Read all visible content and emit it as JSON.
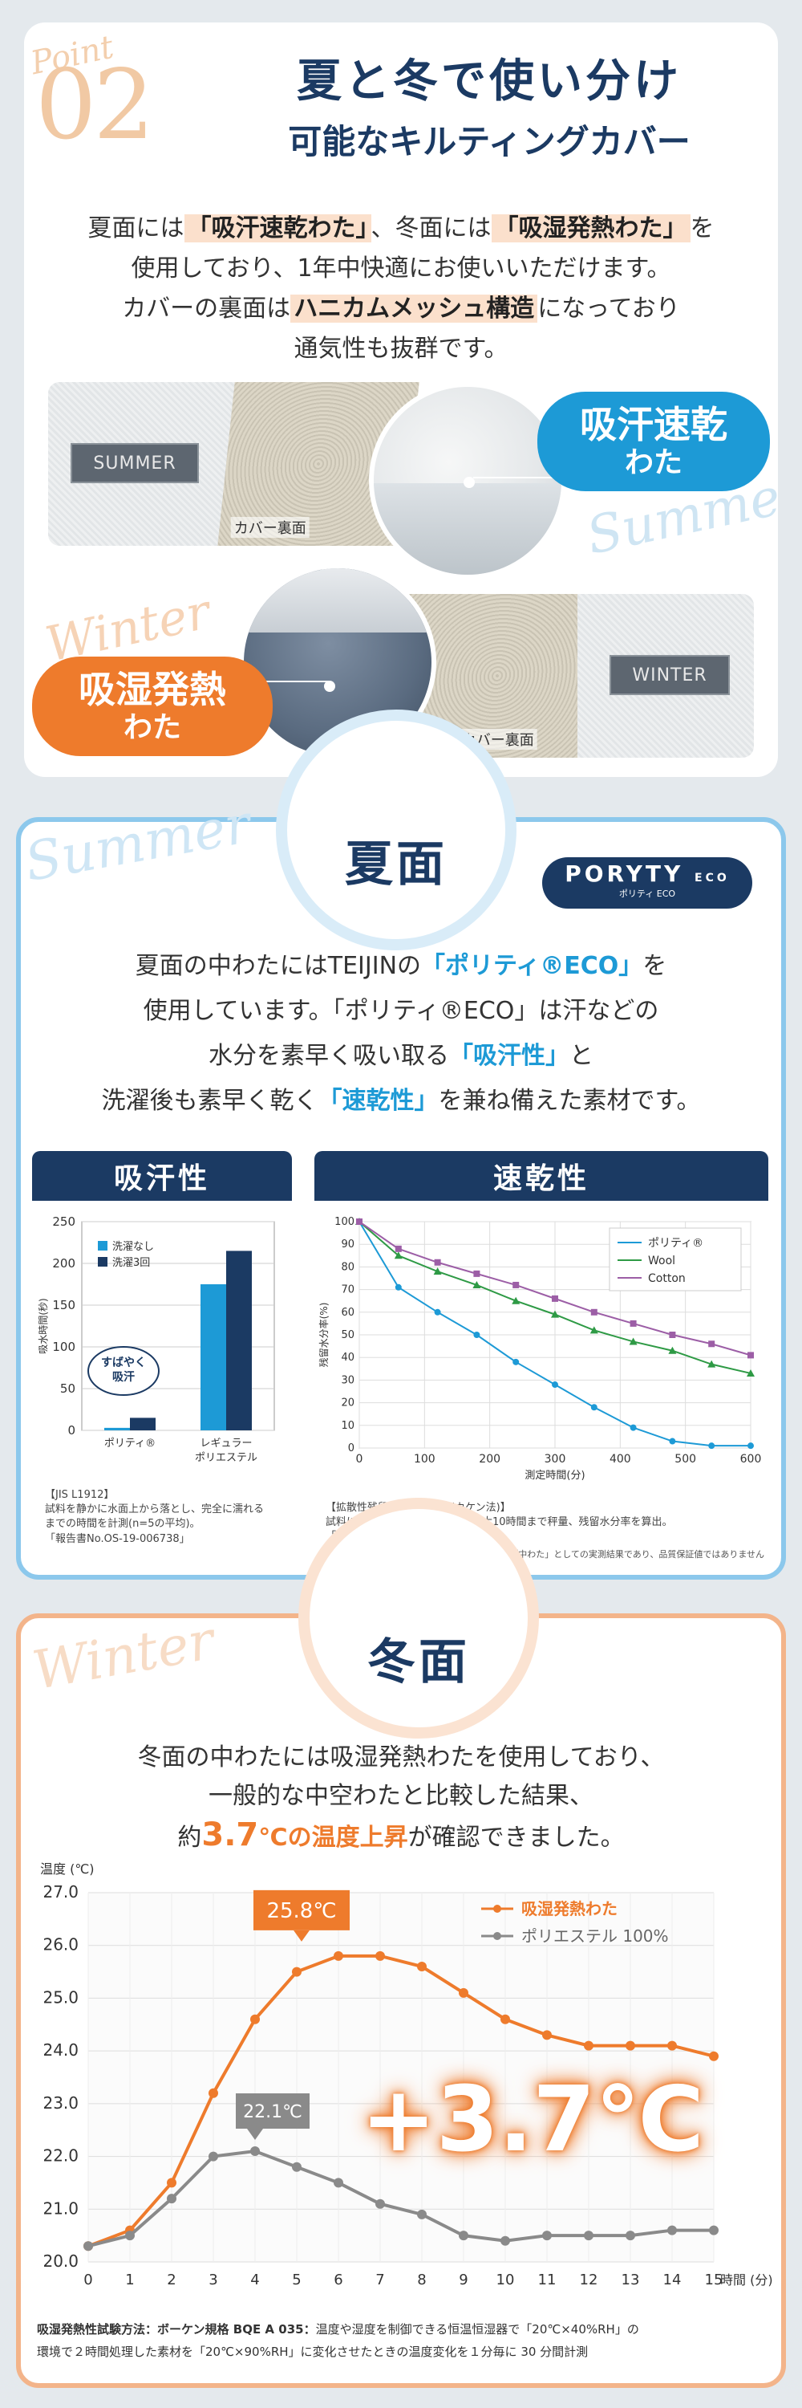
{
  "point": {
    "script_label": "Point",
    "number": "02",
    "title_line1": "夏と冬で使い分け",
    "title_line2": "可能なキルティングカバー",
    "body_line1_pre": "夏面には",
    "body_line1_hl1": "「吸汗速乾わた」",
    "body_line1_mid": "、冬面には",
    "body_line1_hl2": "「吸湿発熱わた」",
    "body_line1_post": "を",
    "body_line2": "使用しており、1年中快適にお使いいただけます。",
    "body_line3_pre": "カバーの裏面は",
    "body_line3_hl": "ハニカムメッシュ構造",
    "body_line3_post": "になっており",
    "body_line4": "通気性も抜群です。",
    "summer_tag": "SUMMER",
    "summer_back_caption": "カバー裏面",
    "summer_pill_line1": "吸汗速乾",
    "summer_pill_line2": "わた",
    "summer_script": "Summer",
    "winter_script": "Winter",
    "winter_pill_line1": "吸湿発熱",
    "winter_pill_line2": "わた",
    "winter_tag": "WINTER",
    "winter_back_caption": "カバー裏面"
  },
  "summer": {
    "script": "Summer",
    "heading": "夏面",
    "logo_text": "PORYTY",
    "logo_eco": "ECO",
    "logo_sub": "ポリティ ECO",
    "text_l1_pre": "夏面の中わたにはTEIJINの",
    "text_l1_hl": "「ポリティ®ECO」",
    "text_l1_post": "を",
    "text_l2": "使用しています。「ポリティ®ECO」は汗などの",
    "text_l3_pre": "水分を素早く吸い取る",
    "text_l3_hl": "「吸汗性」",
    "text_l3_post": "と",
    "text_l4_pre": "洗濯後も素早く乾く",
    "text_l4_hl": "「速乾性」",
    "text_l4_post": "を兼ね備えた素材です。",
    "panel1_title": "吸汗性",
    "panel2_title": "速乾性",
    "note1_l1": "【JIS L1912】",
    "note1_l2": "試料を静かに水面上から落とし、完全に濡れる",
    "note1_l3": "までの時間を計測(n=5の平均)。",
    "note1_l4": "「報告書No.OS-19-006738」",
    "note2_l1": "【拡散性残留水分率試験法(カケン法)】",
    "note2_l2": "試料に水を滴下、滴下直後から最大10時間まで秤量、残留水分率を算出。",
    "note2_l3": "「報告書No.OS-19-006738」",
    "disclaimer": "※「中わた」としての実測結果であり、品質保証値ではありません",
    "bubble_l1": "すばやく",
    "bubble_l2": "吸汗"
  },
  "winter": {
    "script": "Winter",
    "heading": "冬面",
    "text_l1": "冬面の中わたには吸湿発熱わたを使用しており、",
    "text_l2": "一般的な中空わたと比較した結果、",
    "text_l3_pre": "約",
    "text_l3_num": "3.7",
    "text_l3_unit": "℃の温度上昇",
    "text_l3_post": "が確認できました。",
    "callout_max": "25.8℃",
    "callout_min": "22.1℃",
    "big_diff": "+3.7℃",
    "method_label": "吸湿発熱性試験方法：ボーケン規格 BQE A 035：",
    "method_l1": "温度や湿度を制御できる恒温恒湿器で「20℃×40%RH」の",
    "method_l2": "環境で２時間処理した素材を「20℃×90%RH」に変化させたときの温度変化を１分毎に 30 分間計測"
  },
  "colors": {
    "navy": "#1b3a63",
    "blue": "#1d9ad6",
    "orange": "#ee7b2c",
    "purple": "#9c5ea6",
    "green": "#2e9a45",
    "gray": "#8a8a8a"
  },
  "chart_data": [
    {
      "type": "bar",
      "title": "",
      "ylabel": "吸水時間(秒)",
      "ylim": [
        0,
        250
      ],
      "yticks": [
        0,
        50,
        100,
        150,
        200,
        250
      ],
      "categories": [
        "ポリティ®",
        "レギュラーポリエステル"
      ],
      "series": [
        {
          "name": "洗濯なし",
          "values": [
            3,
            175
          ],
          "color": "#1d9ad6"
        },
        {
          "name": "洗濯3回",
          "values": [
            15,
            215
          ],
          "color": "#1b3a63"
        }
      ]
    },
    {
      "type": "line",
      "xlabel": "測定時間(分)",
      "ylabel": "残留水分率(%)",
      "xlim": [
        0,
        600
      ],
      "ylim": [
        0,
        100
      ],
      "xticks": [
        0,
        100,
        200,
        300,
        400,
        500,
        600
      ],
      "yticks": [
        0,
        10,
        20,
        30,
        40,
        50,
        60,
        70,
        80,
        90,
        100
      ],
      "series": [
        {
          "name": "ポリティ®",
          "color": "#1d9ad6",
          "x": [
            0,
            60,
            120,
            180,
            240,
            300,
            360,
            420,
            480,
            540,
            600
          ],
          "y": [
            100,
            71,
            60,
            50,
            38,
            28,
            18,
            9,
            3,
            1,
            1
          ]
        },
        {
          "name": "Wool",
          "color": "#2e9a45",
          "x": [
            0,
            60,
            120,
            180,
            240,
            300,
            360,
            420,
            480,
            540,
            600
          ],
          "y": [
            100,
            85,
            78,
            72,
            65,
            59,
            52,
            47,
            43,
            37,
            33
          ]
        },
        {
          "name": "Cotton",
          "color": "#9c5ea6",
          "x": [
            0,
            60,
            120,
            180,
            240,
            300,
            360,
            420,
            480,
            540,
            600
          ],
          "y": [
            100,
            88,
            82,
            77,
            72,
            66,
            60,
            55,
            50,
            46,
            41
          ]
        }
      ]
    },
    {
      "type": "line",
      "ylabel": "温度 (℃)",
      "xlabel": "時間 (分)",
      "xlim": [
        0,
        15
      ],
      "ylim": [
        20.0,
        27.0
      ],
      "xticks": [
        0,
        1,
        2,
        3,
        4,
        5,
        6,
        7,
        8,
        9,
        10,
        11,
        12,
        13,
        14,
        15
      ],
      "yticks": [
        20.0,
        21.0,
        22.0,
        23.0,
        24.0,
        25.0,
        26.0,
        27.0
      ],
      "series": [
        {
          "name": "吸湿発熱わた",
          "color": "#ee7b2c",
          "x": [
            0,
            1,
            2,
            3,
            4,
            5,
            6,
            7,
            8,
            9,
            10,
            11,
            12,
            13,
            14,
            15
          ],
          "y": [
            20.3,
            20.6,
            21.5,
            23.2,
            24.6,
            25.5,
            25.8,
            25.8,
            25.6,
            25.1,
            24.6,
            24.3,
            24.1,
            24.1,
            24.1,
            23.9
          ]
        },
        {
          "name": "ポリエステル 100%",
          "color": "#8a8a8a",
          "x": [
            0,
            1,
            2,
            3,
            4,
            5,
            6,
            7,
            8,
            9,
            10,
            11,
            12,
            13,
            14,
            15
          ],
          "y": [
            20.3,
            20.5,
            21.2,
            22.0,
            22.1,
            21.8,
            21.5,
            21.1,
            20.9,
            20.5,
            20.4,
            20.5,
            20.5,
            20.5,
            20.6,
            20.6
          ]
        }
      ]
    }
  ]
}
